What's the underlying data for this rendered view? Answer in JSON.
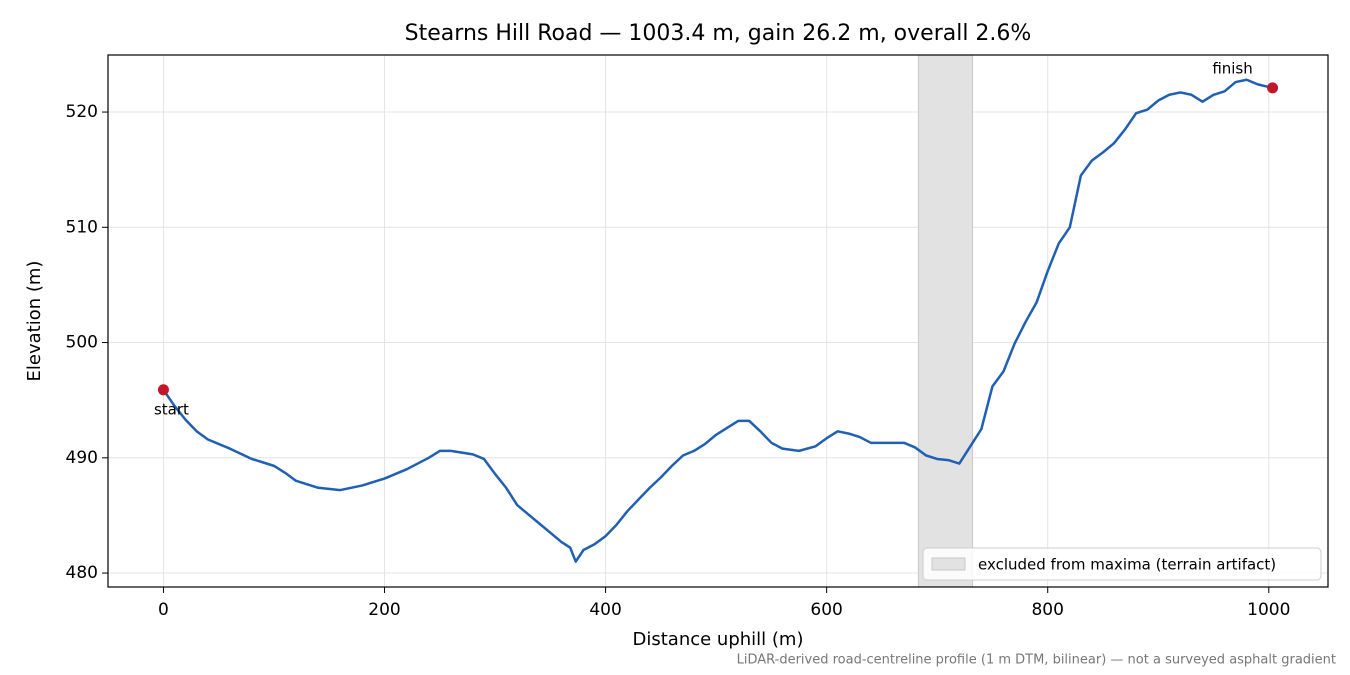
{
  "chart_data": {
    "type": "line",
    "title": "Stearns Hill Road — 1003.4 m, gain 26.2 m, overall 2.6%",
    "x_label": "Distance uphill (m)",
    "y_label": "Elevation (m)",
    "note": "LiDAR-derived road-centreline profile (1 m DTM, bilinear) — not a surveyed asphalt gradient",
    "x": [
      0,
      10,
      20,
      30,
      40,
      60,
      80,
      100,
      110,
      120,
      140,
      160,
      180,
      200,
      220,
      240,
      250,
      260,
      280,
      290,
      300,
      310,
      320,
      330,
      340,
      350,
      360,
      368,
      373,
      380,
      390,
      400,
      410,
      420,
      430,
      440,
      450,
      460,
      470,
      480,
      490,
      500,
      510,
      520,
      530,
      540,
      550,
      560,
      575,
      590,
      600,
      610,
      620,
      630,
      640,
      660,
      670,
      680,
      690,
      700,
      710,
      720,
      730,
      740,
      750,
      760,
      770,
      780,
      790,
      800,
      810,
      820,
      830,
      840,
      850,
      860,
      870,
      880,
      890,
      900,
      910,
      920,
      930,
      940,
      950,
      960,
      970,
      980,
      990,
      1003.4
    ],
    "series": [
      {
        "color": "#1f5fb4",
        "values": [
          495.9,
          494.5,
          493.3,
          492.3,
          491.6,
          490.8,
          489.9,
          489.3,
          488.7,
          488.0,
          487.4,
          487.2,
          487.6,
          488.2,
          489.0,
          490.0,
          490.6,
          490.6,
          490.3,
          489.9,
          488.6,
          487.4,
          485.9,
          485.1,
          484.3,
          483.5,
          482.7,
          482.2,
          481.0,
          482.0,
          482.5,
          483.2,
          484.2,
          485.4,
          486.4,
          487.4,
          488.3,
          489.3,
          490.2,
          490.6,
          491.2,
          492.0,
          492.6,
          493.2,
          493.2,
          492.3,
          491.3,
          490.8,
          490.6,
          491.0,
          491.7,
          492.3,
          492.1,
          491.8,
          491.3,
          491.3,
          491.3,
          490.9,
          490.2,
          489.9,
          489.8,
          489.5,
          491.0,
          492.5,
          496.2,
          497.5,
          499.9,
          501.8,
          503.5,
          506.2,
          508.6,
          510.0,
          514.5,
          515.8,
          516.5,
          517.3,
          518.5,
          519.9,
          520.2,
          521.0,
          521.5,
          521.7,
          521.5,
          520.9,
          521.5,
          521.8,
          522.6,
          522.8,
          522.4,
          522.1
        ]
      }
    ],
    "endpoints": {
      "color": "#c0182a",
      "labels": [
        "start",
        "finish"
      ]
    },
    "span": {
      "label": "excluded from maxima (terrain artifact)",
      "x": [
        683,
        732
      ],
      "color": "#e2e2e2"
    },
    "legend": "lower right",
    "grid": true,
    "xlim": [
      -50.17,
      1053.57
    ],
    "ylim": [
      478.79,
      524.95
    ],
    "xticks": [
      0,
      200,
      400,
      600,
      800,
      1000
    ],
    "yticks": [
      480,
      490,
      500,
      510,
      520
    ]
  }
}
